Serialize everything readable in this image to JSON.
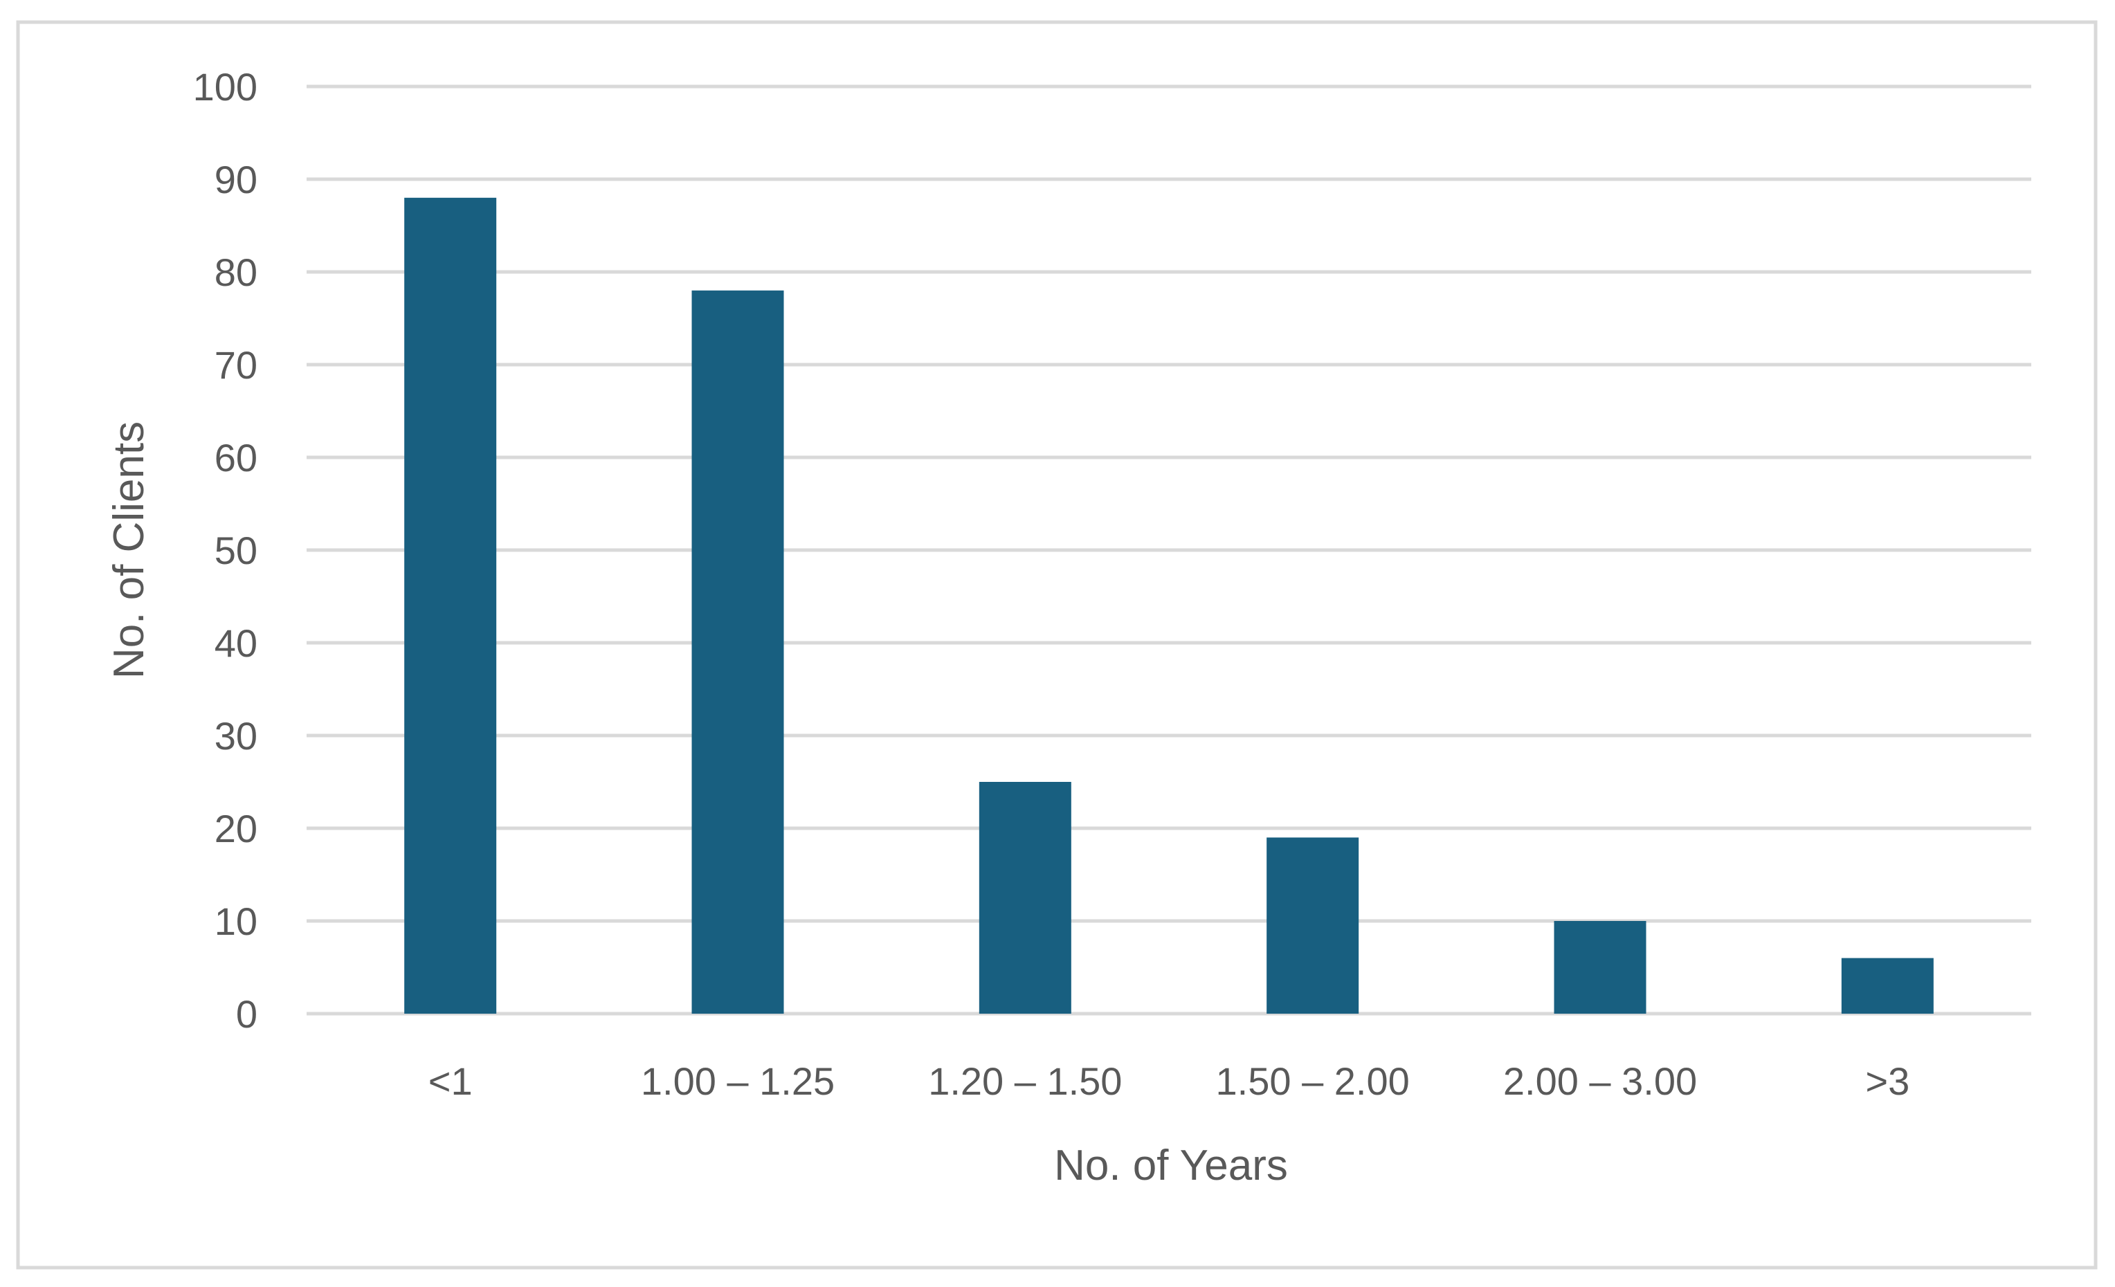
{
  "chart_data": {
    "type": "bar",
    "title": "",
    "xlabel": "No. of Years",
    "ylabel": "No. of Clients",
    "categories": [
      "<1",
      "1.00 – 1.25",
      "1.20 – 1.50",
      "1.50 – 2.00",
      "2.00 – 3.00",
      ">3"
    ],
    "values": [
      88,
      78,
      25,
      19,
      10,
      6
    ],
    "ylim": [
      0,
      100
    ],
    "yticks": [
      "0",
      "10",
      "20",
      "30",
      "40",
      "50",
      "60",
      "70",
      "80",
      "90",
      "100"
    ],
    "grid": true,
    "legend": "none",
    "colors": {
      "bar": "#185F80",
      "grid": "#D9D9D9",
      "text": "#595959",
      "frame": "#D9D9D9"
    }
  }
}
